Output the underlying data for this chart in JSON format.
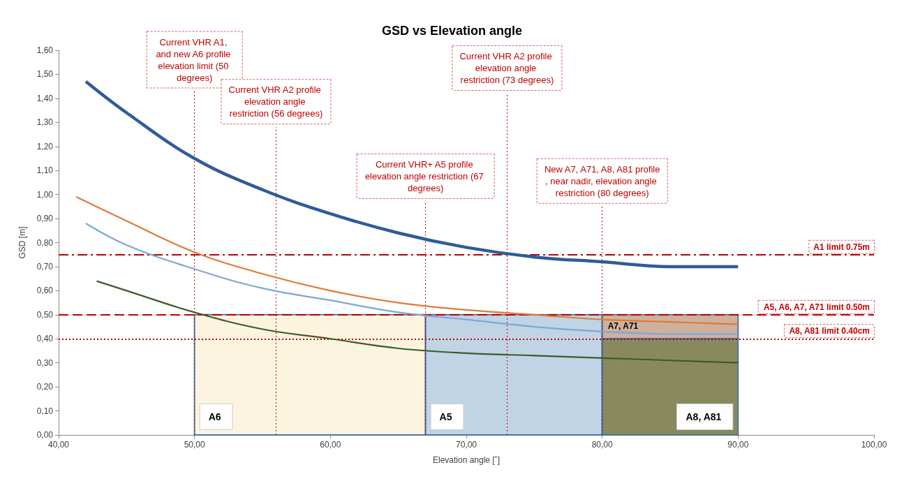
{
  "chart_data": {
    "type": "line",
    "title": "GSD vs Elevation angle",
    "xlabel": "Elevation angle [˚]",
    "ylabel": "GSD [m]",
    "xlim": [
      40,
      100
    ],
    "xticks": [
      {
        "value": 40,
        "label": "40,00"
      },
      {
        "value": 50,
        "label": "50,00"
      },
      {
        "value": 60,
        "label": "60,00"
      },
      {
        "value": 70,
        "label": "70,00"
      },
      {
        "value": 80,
        "label": "80,00"
      },
      {
        "value": 90,
        "label": "90,00"
      },
      {
        "value": 100,
        "label": "100,00"
      }
    ],
    "ylim": [
      0,
      1.6
    ],
    "yticks": [
      {
        "value": 0,
        "label": "0,00"
      },
      {
        "value": 0.1,
        "label": "0,10"
      },
      {
        "value": 0.2,
        "label": "0,20"
      },
      {
        "value": 0.3,
        "label": "0,30"
      },
      {
        "value": 0.4,
        "label": "0,40"
      },
      {
        "value": 0.5,
        "label": "0,50"
      },
      {
        "value": 0.6,
        "label": "0,60"
      },
      {
        "value": 0.7,
        "label": "0,70"
      },
      {
        "value": 0.8,
        "label": "0,80"
      },
      {
        "value": 0.9,
        "label": "0,90"
      },
      {
        "value": 1,
        "label": "1,00"
      },
      {
        "value": 1.1,
        "label": "1,10"
      },
      {
        "value": 1.2,
        "label": "1,20"
      },
      {
        "value": 1.3,
        "label": "1,30"
      },
      {
        "value": 1.4,
        "label": "1,40"
      },
      {
        "value": 1.5,
        "label": "1,50"
      },
      {
        "value": 1.6,
        "label": "1,60"
      }
    ],
    "grid": false,
    "marker": "none",
    "line_style": "solid",
    "series": [
      {
        "color": "#2e5c9a",
        "x": [
          42,
          45,
          50,
          55,
          60,
          65,
          70,
          75,
          80,
          85,
          90
        ],
        "values": [
          1.47,
          1.34,
          1.15,
          1.02,
          0.92,
          0.84,
          0.78,
          0.74,
          0.72,
          0.7,
          0.7
        ]
      },
      {
        "color": "#e07b39",
        "x": [
          41.3,
          45,
          50,
          55,
          60,
          65,
          70,
          75,
          80,
          85,
          90
        ],
        "values": [
          0.99,
          0.89,
          0.76,
          0.67,
          0.6,
          0.55,
          0.52,
          0.5,
          0.48,
          0.47,
          0.46
        ]
      },
      {
        "color": "#7da7d8",
        "x": [
          42,
          45,
          50,
          55,
          60,
          65,
          70,
          75,
          80,
          85,
          90
        ],
        "values": [
          0.88,
          0.79,
          0.69,
          0.61,
          0.56,
          0.51,
          0.48,
          0.45,
          0.43,
          0.42,
          0.42
        ]
      },
      {
        "color": "#3d5a2a",
        "x": [
          42.8,
          45,
          50,
          55,
          60,
          65,
          70,
          75,
          80,
          85,
          90
        ],
        "values": [
          0.64,
          0.6,
          0.51,
          0.44,
          0.4,
          0.36,
          0.34,
          0.33,
          0.32,
          0.31,
          0.3
        ]
      }
    ],
    "ref_lines": [
      {
        "axis": "y",
        "value": 0.75,
        "label": "A1 limit 0.75m",
        "color": "#c00000",
        "line_style": "dashdot"
      },
      {
        "axis": "y",
        "value": 0.5,
        "label": "A5, A6, A7, A71 limit 0.50m",
        "color": "#c00000",
        "line_style": "dashed"
      },
      {
        "axis": "y",
        "value": 0.4,
        "label": "A8, A81 limit 0.40cm",
        "color": "#c00000",
        "line_style": "dotted"
      },
      {
        "axis": "x",
        "value": 50,
        "label": "Current VHR A1, and new A6 profile elevation limit (50 degrees)",
        "color": "#c00000",
        "line_style": "dotted"
      },
      {
        "axis": "x",
        "value": 56,
        "label": "Current VHR A2 profile elevation angle restriction (56 degrees)",
        "color": "#c00000",
        "line_style": "dotted"
      },
      {
        "axis": "x",
        "value": 67,
        "label": "Current VHR+ A5 profile elevation angle restriction (67 degrees)",
        "color": "#c00000",
        "line_style": "dotted"
      },
      {
        "axis": "x",
        "value": 73,
        "label": "Current VHR A2 profile elevation angle restriction (73 degrees)",
        "color": "#c00000",
        "line_style": "dotted"
      },
      {
        "axis": "x",
        "value": 80,
        "label": "New A7, A71, A8, A81 profile, near nadir, elevation angle restriction (80 degrees)",
        "color": "#c00000",
        "line_style": "dotted"
      }
    ],
    "bands": [
      {
        "axis": "x",
        "from": 50,
        "to": 67,
        "label": "A6",
        "color": "#fdf3dc"
      },
      {
        "axis": "x",
        "from": 67,
        "to": 80,
        "label": "A5",
        "color": "#b9cfe2"
      },
      {
        "axis": "x",
        "from": 80,
        "to": 90,
        "label": "A7, A71",
        "color": "#c9a892"
      },
      {
        "axis": "x",
        "from": 80,
        "to": 90,
        "label": "A8, A81",
        "color": "#7b7d4c"
      }
    ]
  }
}
